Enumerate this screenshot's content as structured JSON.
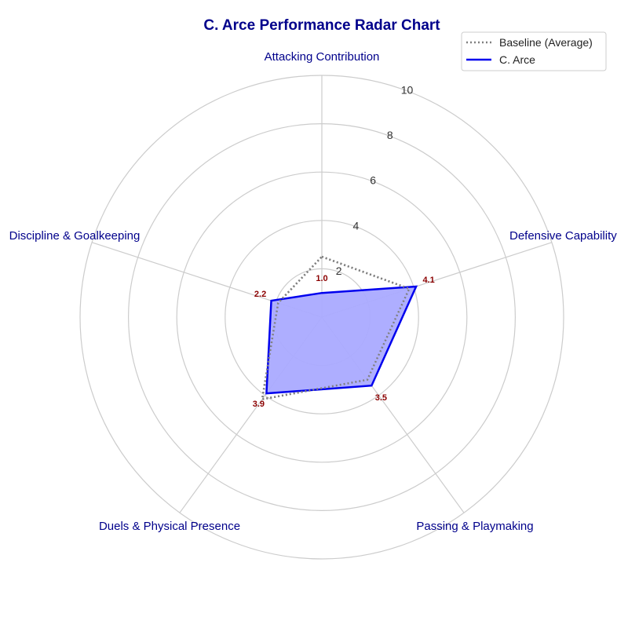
{
  "chart_data": {
    "type": "radar",
    "title": "C. Arce Performance Radar Chart",
    "axes": [
      "Attacking Contribution",
      "Defensive Capability",
      "Passing & Playmaking",
      "Duels & Physical Presence",
      "Discipline & Goalkeeping"
    ],
    "rlim": [
      0,
      10
    ],
    "rticks": [
      2,
      4,
      6,
      8,
      10
    ],
    "grid": true,
    "legend": "top-right",
    "series": [
      {
        "name": "Baseline (Average)",
        "values": [
          2.5,
          3.8,
          3.2,
          4.2,
          1.9
        ],
        "color": "#808080",
        "style": "dotted"
      },
      {
        "name": "C. Arce",
        "values": [
          1.0,
          4.1,
          3.5,
          3.9,
          2.2
        ],
        "color": "#0000ee",
        "fill": "#aaaaff",
        "style": "solid",
        "labels": [
          "1.0",
          "4.1",
          "3.5",
          "3.9",
          "2.2"
        ]
      }
    ]
  },
  "colors": {
    "title": "#00008b",
    "axis_label": "#00008b",
    "data_label": "#8b0000",
    "grid": "#cccccc"
  }
}
